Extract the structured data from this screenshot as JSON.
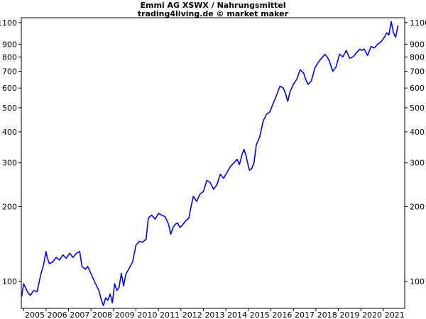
{
  "chart_data": {
    "type": "line",
    "title": "Emmi AG XSWX / Nahrungsmittel",
    "subtitle": "trading4living.de © market maker",
    "y_scale": "log",
    "ylim": [
      78,
      1150
    ],
    "xlim": [
      2004.9,
      2021.95
    ],
    "y_ticks": [
      100,
      200,
      300,
      400,
      500,
      600,
      700,
      800,
      900,
      1100
    ],
    "x_ticks": [
      "2005",
      "2006",
      "2007",
      "2008",
      "2009",
      "2010",
      "2011",
      "2012",
      "2013",
      "2014",
      "2015",
      "2016",
      "2017",
      "2018",
      "2019",
      "2020",
      "2021"
    ],
    "grid": false,
    "line_color": "#0000ee",
    "series": [
      {
        "x": [
          2004.92,
          2005.0,
          2005.1,
          2005.2,
          2005.3,
          2005.45,
          2005.6,
          2005.75,
          2005.9,
          2006.0,
          2006.05,
          2006.15,
          2006.3,
          2006.45,
          2006.6,
          2006.75,
          2006.9,
          2007.05,
          2007.2,
          2007.35,
          2007.5,
          2007.6,
          2007.75,
          2007.85,
          2007.95,
          2008.05,
          2008.2,
          2008.35,
          2008.45,
          2008.55,
          2008.65,
          2008.75,
          2008.85,
          2008.95,
          2009.05,
          2009.15,
          2009.25,
          2009.35,
          2009.45,
          2009.55,
          2009.7,
          2009.85,
          2010.0,
          2010.15,
          2010.3,
          2010.45,
          2010.55,
          2010.7,
          2010.85,
          2011.0,
          2011.15,
          2011.3,
          2011.45,
          2011.55,
          2011.65,
          2011.75,
          2011.85,
          2011.95,
          2012.05,
          2012.2,
          2012.35,
          2012.45,
          2012.55,
          2012.7,
          2012.85,
          2013.0,
          2013.15,
          2013.3,
          2013.45,
          2013.6,
          2013.75,
          2013.9,
          2014.05,
          2014.2,
          2014.35,
          2014.5,
          2014.6,
          2014.7,
          2014.8,
          2014.9,
          2015.0,
          2015.05,
          2015.15,
          2015.25,
          2015.35,
          2015.5,
          2015.65,
          2015.8,
          2015.95,
          2016.1,
          2016.25,
          2016.4,
          2016.55,
          2016.65,
          2016.75,
          2016.85,
          2017.0,
          2017.15,
          2017.3,
          2017.45,
          2017.55,
          2017.65,
          2017.8,
          2017.95,
          2018.1,
          2018.25,
          2018.4,
          2018.5,
          2018.6,
          2018.75,
          2018.9,
          2019.05,
          2019.2,
          2019.35,
          2019.5,
          2019.65,
          2019.8,
          2019.95,
          2020.05,
          2020.15,
          2020.3,
          2020.45,
          2020.6,
          2020.75,
          2020.9,
          2021.05,
          2021.15,
          2021.25,
          2021.35,
          2021.45,
          2021.55,
          2021.65
        ],
        "y": [
          87,
          98,
          94,
          90,
          88,
          92,
          91,
          105,
          118,
          132,
          125,
          118,
          120,
          125,
          122,
          128,
          124,
          130,
          125,
          130,
          132,
          115,
          112,
          115,
          110,
          105,
          98,
          92,
          85,
          80,
          86,
          84,
          89,
          82,
          98,
          92,
          95,
          108,
          96,
          107,
          113,
          120,
          140,
          145,
          144,
          148,
          180,
          185,
          178,
          188,
          185,
          182,
          170,
          155,
          165,
          170,
          172,
          165,
          168,
          175,
          180,
          200,
          220,
          210,
          225,
          230,
          255,
          250,
          235,
          245,
          270,
          260,
          275,
          290,
          300,
          310,
          295,
          320,
          340,
          320,
          290,
          280,
          285,
          300,
          355,
          380,
          440,
          470,
          480,
          520,
          560,
          610,
          600,
          570,
          530,
          580,
          620,
          650,
          710,
          690,
          650,
          620,
          640,
          720,
          760,
          790,
          820,
          800,
          770,
          700,
          730,
          820,
          800,
          850,
          790,
          800,
          830,
          860,
          850,
          860,
          810,
          880,
          870,
          900,
          920,
          960,
          1000,
          980,
          1110,
          1000,
          960,
          1070
        ]
      }
    ]
  }
}
